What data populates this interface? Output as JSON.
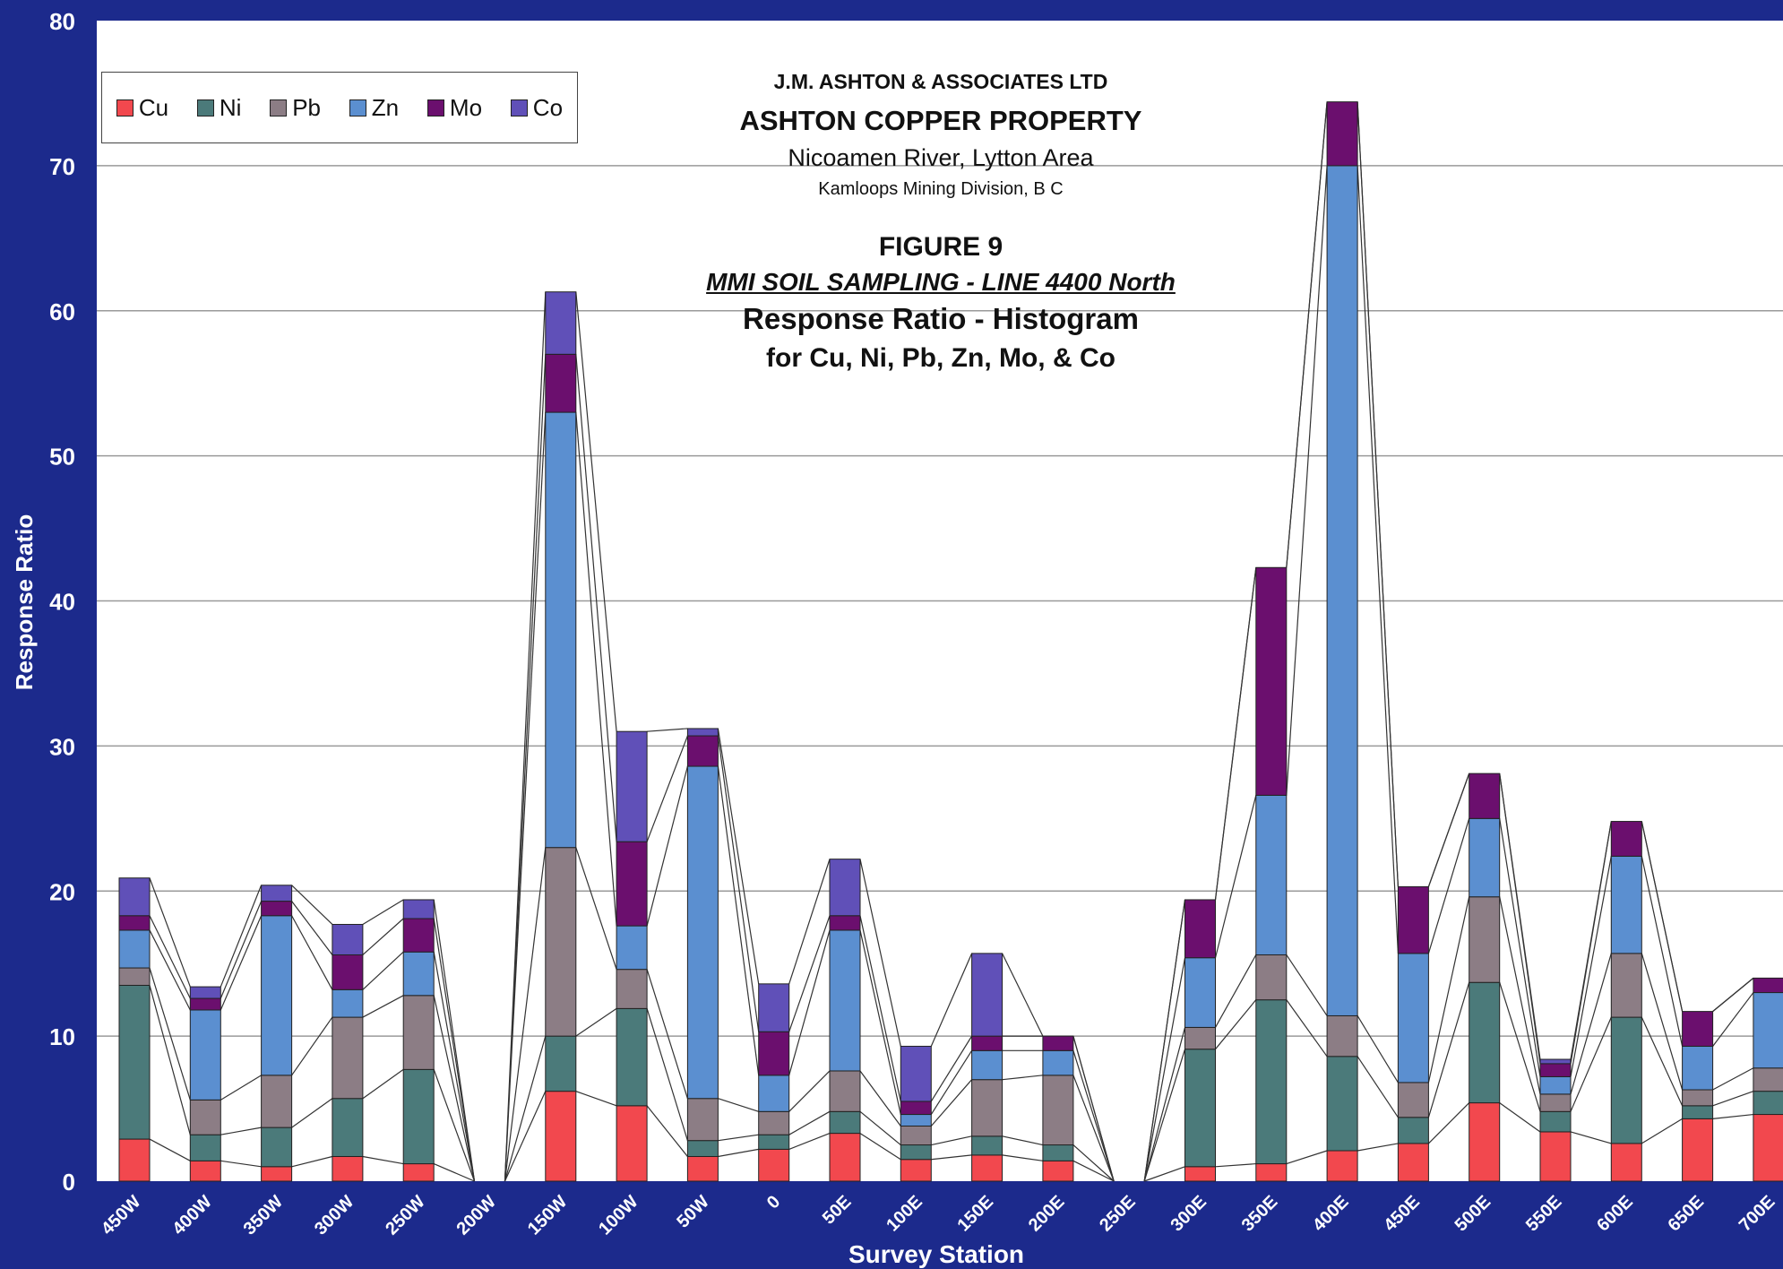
{
  "titles": {
    "company": "J.M. ASHTON & ASSOCIATES LTD",
    "property": "ASHTON COPPER PROPERTY",
    "location": "Nicoamen River, Lytton Area",
    "division": "Kamloops Mining Division, B C",
    "figure": "FIGURE 9",
    "survey": "MMI SOIL SAMPLING - LINE 4400 North",
    "chart_title": "Response Ratio - Histogram",
    "chart_subtitle": "for Cu, Ni, Pb, Zn, Mo, & Co"
  },
  "colors": {
    "background": "#1c2a8c",
    "plot": "#ffffff",
    "Cu": "#f2484e",
    "Ni": "#4b7a7a",
    "Pb": "#8c7d85",
    "Zn": "#5b8fd0",
    "Mo": "#6b0f6e",
    "Co": "#6050b8"
  },
  "chart_data": {
    "type": "bar",
    "stacked": true,
    "xlabel": "Survey Station",
    "ylabel": "Response Ratio",
    "ylim": [
      0,
      80
    ],
    "yticks": [
      0,
      10,
      20,
      30,
      40,
      50,
      60,
      70,
      80
    ],
    "grid": true,
    "legend_position": "top-left",
    "categories": [
      "450W",
      "400W",
      "350W",
      "300W",
      "250W",
      "200W",
      "150W",
      "100W",
      "50W",
      "0",
      "50E",
      "100E",
      "150E",
      "200E",
      "250E",
      "300E",
      "350E",
      "400E",
      "450E",
      "500E",
      "550E",
      "600E",
      "650E",
      "700E"
    ],
    "series": [
      {
        "name": "Cu",
        "values": [
          2.9,
          1.4,
          1.0,
          1.7,
          1.2,
          0,
          6.2,
          5.2,
          1.7,
          2.2,
          3.3,
          1.5,
          1.8,
          1.4,
          0,
          1.0,
          1.2,
          2.1,
          2.6,
          5.4,
          3.4,
          2.6,
          4.3,
          4.6
        ]
      },
      {
        "name": "Ni",
        "values": [
          10.6,
          1.8,
          2.7,
          4.0,
          6.5,
          0,
          3.8,
          6.7,
          1.1,
          1.0,
          1.5,
          1.0,
          1.3,
          1.1,
          0,
          8.1,
          11.3,
          6.5,
          1.8,
          8.3,
          1.4,
          8.7,
          0.9,
          1.6
        ]
      },
      {
        "name": "Pb",
        "values": [
          1.2,
          2.4,
          3.6,
          5.6,
          5.1,
          0,
          13.0,
          2.7,
          2.9,
          1.6,
          2.8,
          1.3,
          3.9,
          4.8,
          0,
          1.5,
          3.1,
          2.8,
          2.4,
          5.9,
          1.2,
          4.4,
          1.1,
          1.6
        ]
      },
      {
        "name": "Zn",
        "values": [
          2.6,
          6.2,
          11.0,
          1.9,
          3.0,
          0,
          30.0,
          3.0,
          22.9,
          2.5,
          9.7,
          0.8,
          2.0,
          1.7,
          0,
          4.8,
          11.0,
          58.6,
          8.9,
          5.4,
          1.2,
          6.7,
          3.0,
          5.2
        ]
      },
      {
        "name": "Mo",
        "values": [
          1.0,
          0.8,
          1.0,
          2.4,
          2.3,
          0,
          4.0,
          5.8,
          2.1,
          3.0,
          1.0,
          0.9,
          1.0,
          1.0,
          0,
          4.0,
          15.7,
          4.4,
          4.6,
          3.1,
          0.9,
          2.4,
          2.4,
          1.0
        ]
      },
      {
        "name": "Co",
        "values": [
          2.6,
          0.8,
          1.1,
          2.1,
          1.3,
          0,
          4.3,
          7.6,
          0.5,
          3.3,
          3.9,
          3.8,
          5.7,
          0,
          0,
          0,
          0,
          0,
          0,
          0,
          0.3,
          0,
          0,
          0
        ]
      }
    ]
  }
}
